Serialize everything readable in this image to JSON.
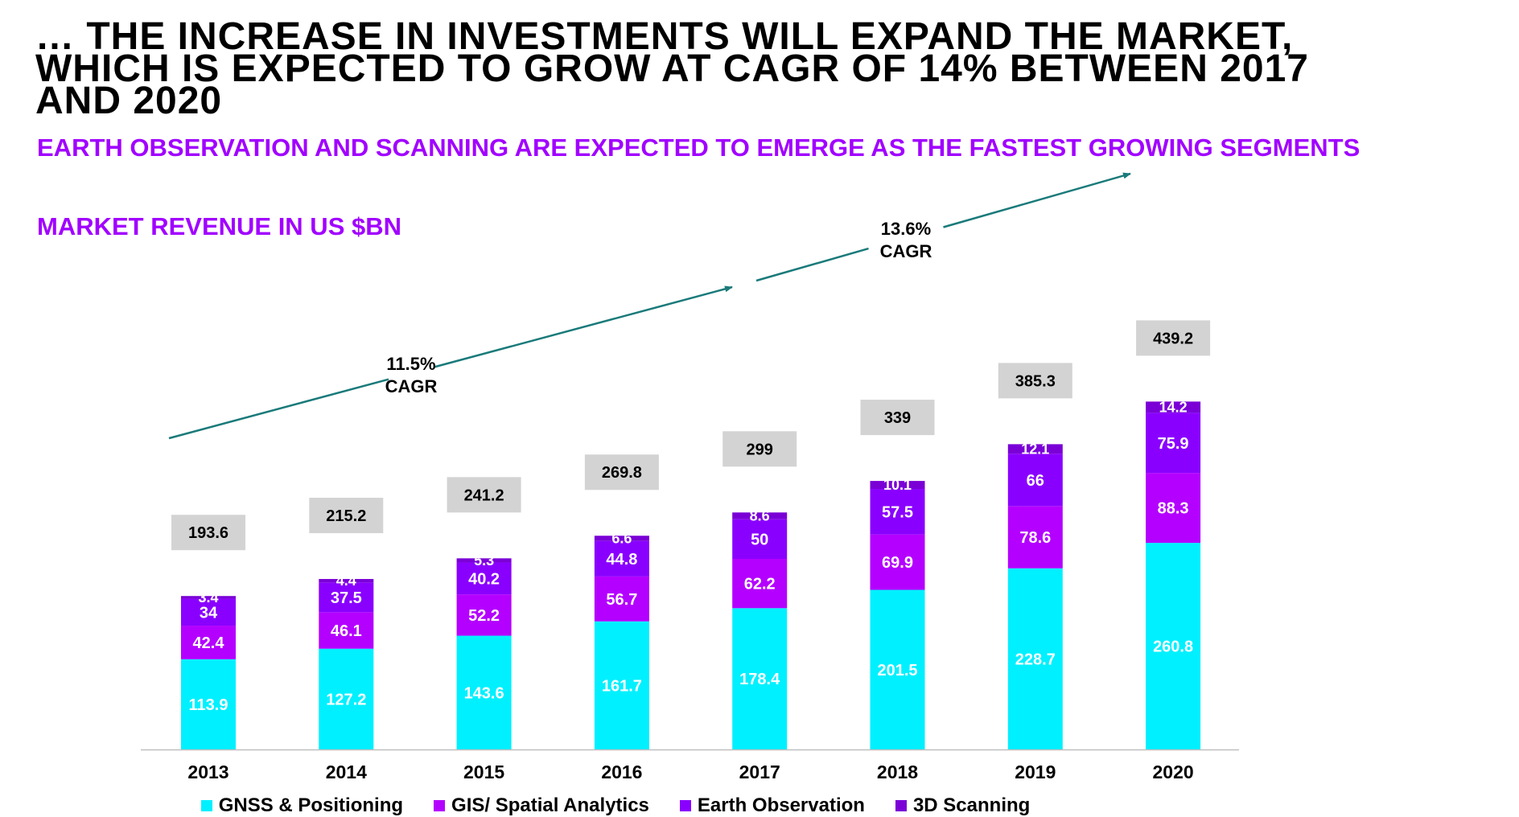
{
  "headline": {
    "line1": "… THE INCREASE IN INVESTMENTS WILL EXPAND THE MARKET,",
    "line2": "WHICH IS EXPECTED TO GROW AT CAGR OF 14% BETWEEN 2017",
    "line3": "AND 2020"
  },
  "subtitle": "EARTH OBSERVATION AND SCANNING ARE EXPECTED TO EMERGE AS THE FASTEST GROWING SEGMENTS",
  "unit_label": "MARKET REVENUE IN US $BN",
  "colors": {
    "gnss": "#00f0ff",
    "gis": "#b400ff",
    "earth": "#8a00ff",
    "scan": "#7a00d6",
    "total_box": "#d3d3d3",
    "arrow": "#1a7a7a",
    "accent": "#a100ff"
  },
  "chart_data": {
    "type": "bar",
    "stacked": true,
    "categories": [
      "2013",
      "2014",
      "2015",
      "2016",
      "2017",
      "2018",
      "2019",
      "2020"
    ],
    "series": [
      {
        "name": "GNSS & Positioning",
        "key": "gnss",
        "values": [
          113.9,
          127.2,
          143.6,
          161.7,
          178.4,
          201.5,
          228.7,
          260.8
        ]
      },
      {
        "name": "GIS/ Spatial Analytics",
        "key": "gis",
        "values": [
          42.4,
          46.1,
          52.2,
          56.7,
          62.2,
          69.9,
          78.6,
          88.3
        ]
      },
      {
        "name": "Earth Observation",
        "key": "earth",
        "values": [
          34,
          37.5,
          40.2,
          44.8,
          50,
          57.5,
          66,
          75.9
        ]
      },
      {
        "name": "3D Scanning",
        "key": "scan",
        "values": [
          3.4,
          4.4,
          5.3,
          6.6,
          8.6,
          10.1,
          12.1,
          14.2
        ]
      }
    ],
    "totals": [
      "193.6",
      "215.2",
      "241.2",
      "269.8",
      "299",
      "339",
      "385.3",
      "439.2"
    ],
    "annotations": [
      {
        "text_line1": "11.5%",
        "text_line2": "CAGR",
        "from": "2013",
        "to": "2017"
      },
      {
        "text_line1": "13.6%",
        "text_line2": "CAGR",
        "from": "2017",
        "to": "2020"
      }
    ],
    "ylim": [
      0,
      460
    ],
    "grid": false,
    "legend_position": "bottom"
  }
}
